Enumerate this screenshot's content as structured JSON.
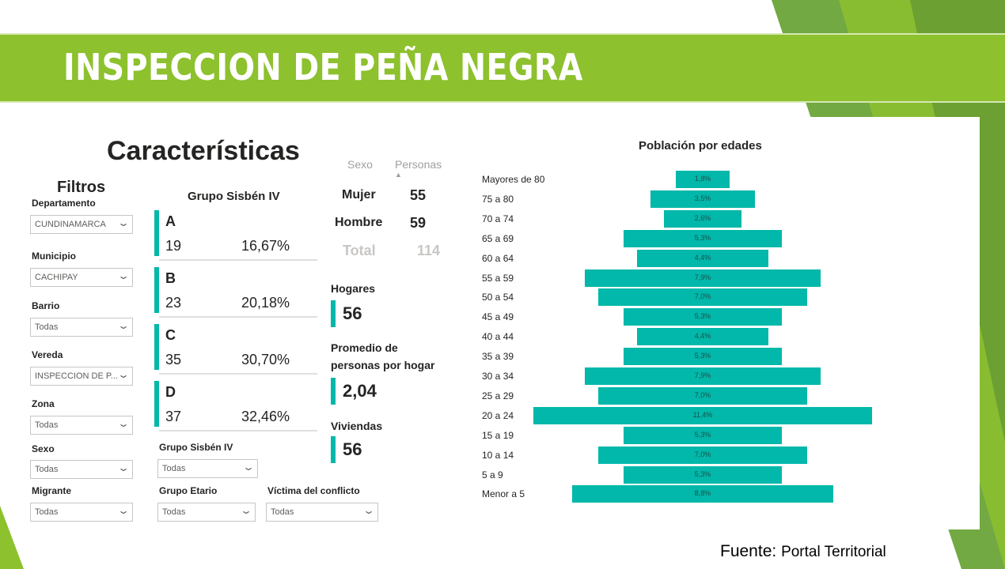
{
  "slide_title": "INSPECCION DE PEÑA NEGRA",
  "panel_title": "Características",
  "filters": {
    "title": "Filtros",
    "items": [
      {
        "label": "Departamento",
        "value": "CUNDINAMARCA"
      },
      {
        "label": "Municipio",
        "value": "CACHIPAY"
      },
      {
        "label": "Barrio",
        "value": "Todas"
      },
      {
        "label": "Vereda",
        "value": "INSPECCION DE P..."
      },
      {
        "label": "Zona",
        "value": "Todas"
      },
      {
        "label": "Sexo",
        "value": "Todas"
      },
      {
        "label": "Migrante",
        "value": "Todas"
      }
    ],
    "bottom": [
      {
        "label": "Grupo Sisbén IV",
        "value": "Todas"
      },
      {
        "label": "Grupo Etario",
        "value": "Todas"
      },
      {
        "label": "Víctima del conflicto",
        "value": "Todas"
      }
    ]
  },
  "sisben": {
    "title": "Grupo Sisbén IV",
    "groups": [
      {
        "letter": "A",
        "count": "19",
        "pct": "16,67%"
      },
      {
        "letter": "B",
        "count": "23",
        "pct": "20,18%"
      },
      {
        "letter": "C",
        "count": "35",
        "pct": "30,70%"
      },
      {
        "letter": "D",
        "count": "37",
        "pct": "32,46%"
      }
    ]
  },
  "sex_table": {
    "col_sexo": "Sexo",
    "col_personas": "Personas",
    "rows": [
      {
        "label": "Mujer",
        "value": "55"
      },
      {
        "label": "Hombre",
        "value": "59"
      }
    ],
    "total_label": "Total",
    "total_value": "114"
  },
  "kpis": {
    "hogares_label": "Hogares",
    "hogares_value": "56",
    "promedio_label_1": "Promedio de",
    "promedio_label_2": "personas por hogar",
    "promedio_value": "2,04",
    "viviendas_label": "Viviendas",
    "viviendas_value": "56"
  },
  "chart_data": {
    "type": "bar",
    "title": "Población por edades",
    "orientation": "horizontal-centered",
    "categories": [
      "Mayores de 80",
      "75 a 80",
      "70 a 74",
      "65 a 69",
      "60 a 64",
      "55 a 59",
      "50 a 54",
      "45 a 49",
      "40 a 44",
      "35 a 39",
      "30 a 34",
      "25 a 29",
      "20 a 24",
      "15 a 19",
      "10 a 14",
      "5 a 9",
      "Menor a 5"
    ],
    "values": [
      1.8,
      3.5,
      2.6,
      5.3,
      4.4,
      7.9,
      7.0,
      5.3,
      4.4,
      5.3,
      7.9,
      7.0,
      11.4,
      5.3,
      7.0,
      5.3,
      8.8
    ],
    "labels": [
      "1,8%",
      "3,5%",
      "2,6%",
      "5,3%",
      "4,4%",
      "7,9%",
      "7,0%",
      "5,3%",
      "4,4%",
      "5,3%",
      "7,9%",
      "7,0%",
      "11,4%",
      "5,3%",
      "7,0%",
      "5,3%",
      "8,8%"
    ],
    "color": "#01b8aa"
  },
  "source": {
    "prefix": "Fuente:",
    "text": "Portal Territorial"
  },
  "colors": {
    "title_bar": "#8dc12e",
    "accent": "#01b8aa"
  }
}
